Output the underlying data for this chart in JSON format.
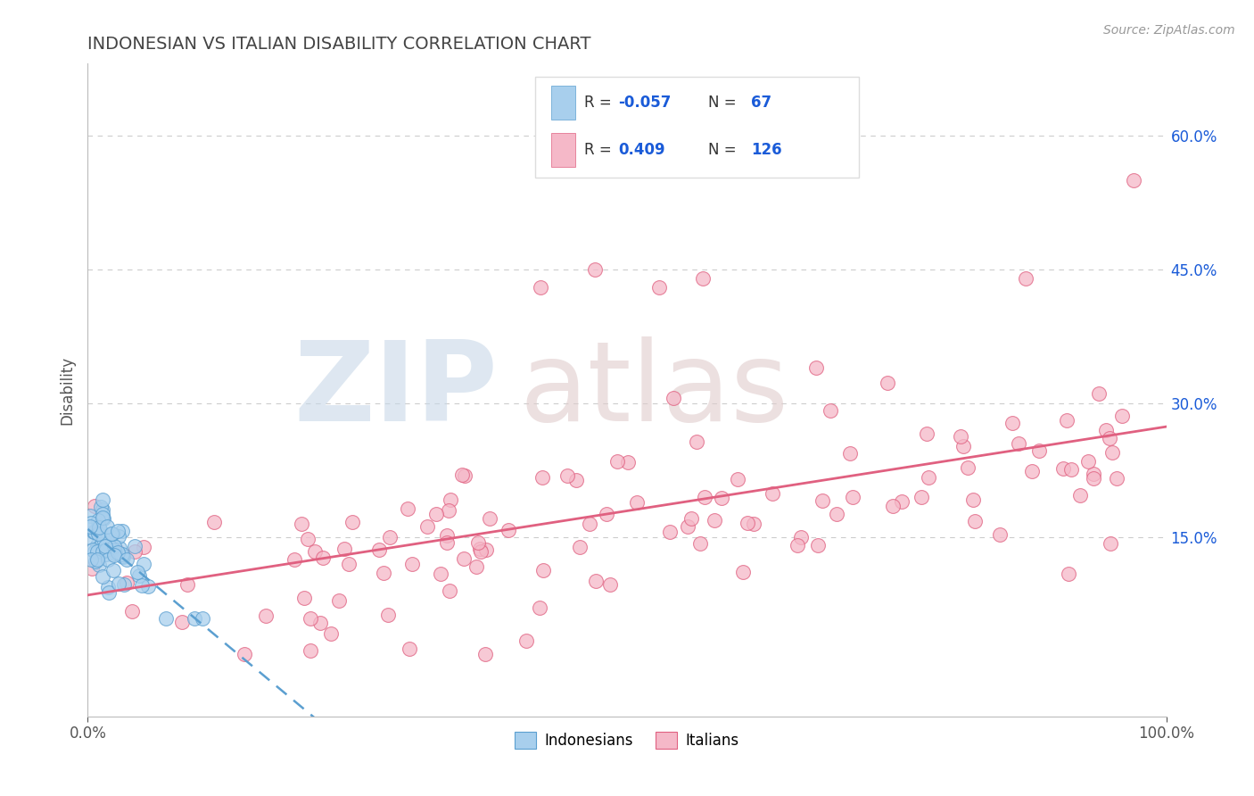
{
  "title": "INDONESIAN VS ITALIAN DISABILITY CORRELATION CHART",
  "source_text": "Source: ZipAtlas.com",
  "ylabel": "Disability",
  "xlim": [
    0,
    1
  ],
  "ylim": [
    -0.05,
    0.68
  ],
  "yticks": [
    0.15,
    0.3,
    0.45,
    0.6
  ],
  "ytick_labels": [
    "15.0%",
    "30.0%",
    "45.0%",
    "60.0%"
  ],
  "xticks": [
    0.0,
    1.0
  ],
  "xtick_labels": [
    "0.0%",
    "100.0%"
  ],
  "indonesian_R": -0.057,
  "indonesian_N": 67,
  "italian_R": 0.409,
  "italian_N": 126,
  "blue_fill": "#A8CFED",
  "blue_edge": "#5B9FD0",
  "pink_fill": "#F5B8C8",
  "pink_edge": "#E06080",
  "blue_line_color": "#5B9FD0",
  "pink_line_color": "#E06080",
  "grid_color": "#CCCCCC",
  "title_color": "#444444",
  "value_color": "#1A5BD8",
  "label_color": "#555555",
  "watermark_zip_color": "#C8D8E8",
  "watermark_atlas_color": "#E0CCCC",
  "legend_edge_color": "#DDDDDD",
  "source_color": "#999999"
}
